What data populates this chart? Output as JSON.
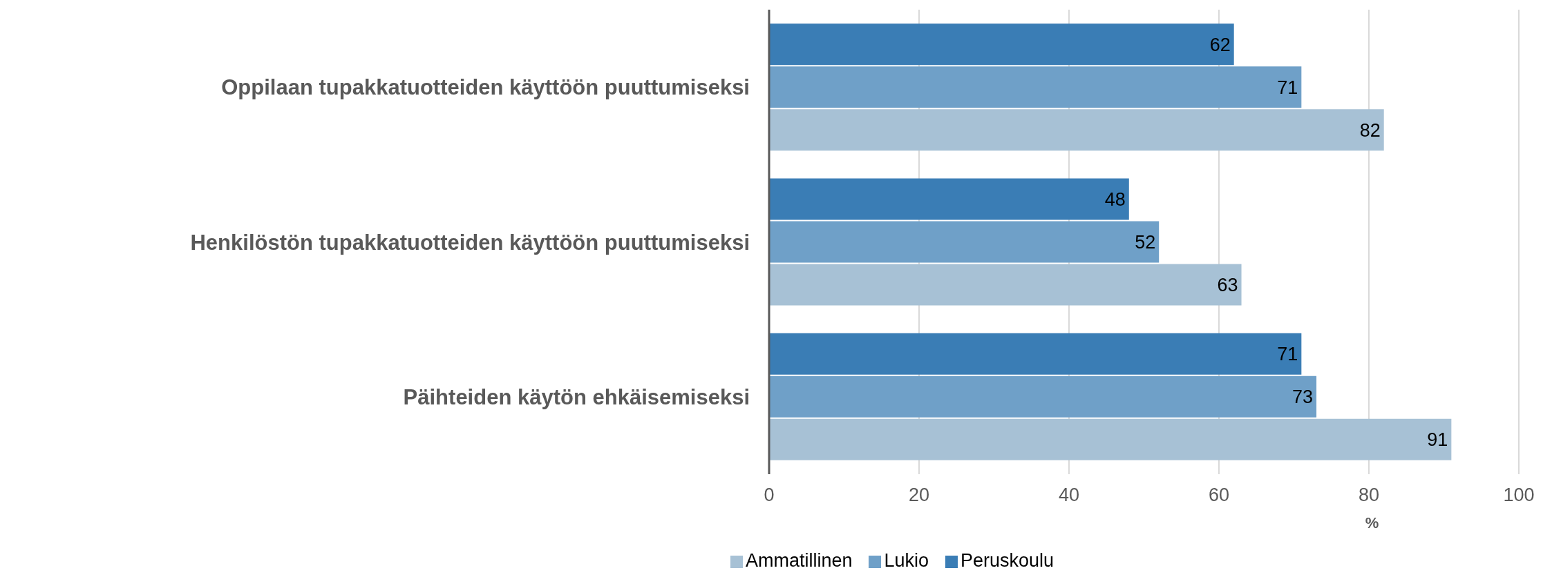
{
  "chart_data": {
    "type": "bar",
    "orientation": "horizontal",
    "xlabel": "%",
    "categories": [
      "Oppilaan tupakkatuotteiden käyttöön puuttumiseksi",
      "Henkilöstön tupakkatuotteiden käyttöön puuttumiseksi",
      "Päihteiden käytön ehkäisemiseksi"
    ],
    "series": [
      {
        "name": "Peruskoulu",
        "color": "#3a7db5",
        "values": [
          62,
          48,
          71
        ]
      },
      {
        "name": "Lukio",
        "color": "#6fa0c8",
        "values": [
          71,
          52,
          73
        ]
      },
      {
        "name": "Ammatillinen",
        "color": "#a7c1d5",
        "values": [
          82,
          63,
          91
        ]
      }
    ],
    "xlim": [
      0,
      100
    ],
    "xticks": [
      0,
      20,
      40,
      60,
      80,
      100
    ],
    "grid": "x",
    "legend": "bottom",
    "data_labels": true
  }
}
